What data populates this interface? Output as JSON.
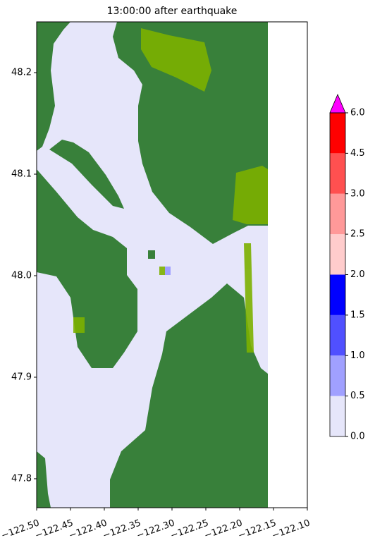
{
  "chart_data": {
    "type": "heatmap",
    "title": "13:00:00 after earthquake",
    "xlim": [
      -122.5,
      -122.1
    ],
    "xticks": [
      {
        "value": -122.5,
        "label": "−122.50"
      },
      {
        "value": -122.45,
        "label": "−122.45"
      },
      {
        "value": -122.4,
        "label": "−122.40"
      },
      {
        "value": -122.35,
        "label": "−122.35"
      },
      {
        "value": -122.3,
        "label": "−122.30"
      },
      {
        "value": -122.25,
        "label": "−122.25"
      },
      {
        "value": -122.2,
        "label": "−122.20"
      },
      {
        "value": -122.15,
        "label": "−122.15"
      },
      {
        "value": -122.1,
        "label": "−122.10"
      }
    ],
    "ylim": [
      47.7715,
      48.25
    ],
    "yticks": [
      {
        "value": 47.8,
        "label": "47.8"
      },
      {
        "value": 47.9,
        "label": "47.9"
      },
      {
        "value": 48.0,
        "label": "48.0"
      },
      {
        "value": 48.1,
        "label": "48.1"
      },
      {
        "value": 48.2,
        "label": "48.2"
      }
    ],
    "colorbar": {
      "ticks": [
        {
          "value": 0,
          "label": "0.0"
        },
        0.5,
        {
          "value": 1,
          "label": "1.0"
        },
        1.5,
        {
          "value": 2,
          "label": "2.0"
        },
        2.5,
        {
          "value": 3,
          "label": "3.0"
        },
        4.5,
        {
          "value": 6,
          "label": "6.0"
        }
      ],
      "colors": [
        "#e6e6fa",
        "#a0a0ff",
        "#5050ff",
        "#0000ff",
        "#ffcccc",
        "#ff9999",
        "#ff5050",
        "#ff0000"
      ],
      "extend_color": "#ff00ff"
    }
  }
}
